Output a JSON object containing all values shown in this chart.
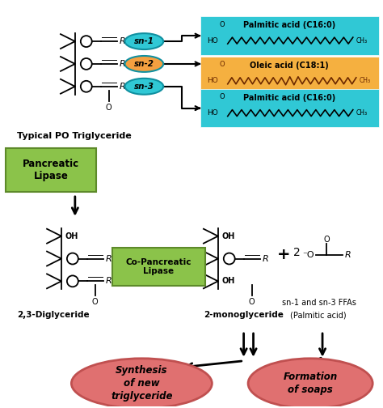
{
  "bg_color": "#ffffff",
  "cyan_color": "#4dd0d8",
  "orange_color": "#f5a623",
  "green_box_color": "#8bc34a",
  "green_box_edge": "#5d8a2a",
  "pink_ellipse_color": "#e07070",
  "pink_ellipse_edge": "#c05050",
  "acid_box1_color": "#30c8d5",
  "acid_box2_color": "#f5b040",
  "acid_box3_color": "#30c8d5",
  "sn1_color": "#30c8d5",
  "sn2_color": "#f5a040",
  "sn3_color": "#30c8d5",
  "label_typical": "Typical PO Triglyceride",
  "label_pancreatic": "Pancreatic\nLipase",
  "label_copancreatic": "Co-Pancreatic\nLipase",
  "label_diglyceride": "2,3-Diglyceride",
  "label_monoglyceride": "2-monoglyceride",
  "label_ffas_1": "sn-1 and sn-3 FFAs",
  "label_ffas_2": "(Palmitic acid)",
  "label_synthesis": "Synthesis\nof new\ntriglyceride",
  "label_soaps": "Formation\nof soaps",
  "palmitic1": "Palmitic acid (C16:0)",
  "oleic": "Oleic acid (C18:1)",
  "palmitic2": "Palmitic acid (C16:0)"
}
